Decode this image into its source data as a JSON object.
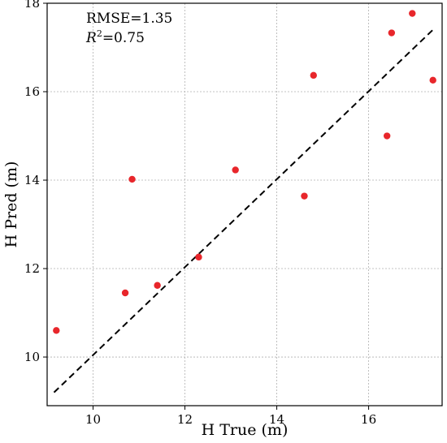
{
  "chart_data": {
    "type": "scatter",
    "xlabel": "H True (m)",
    "ylabel": "H Pred (m)",
    "xlim": [
      9.0,
      17.6
    ],
    "ylim": [
      8.9,
      18.0
    ],
    "xticks": [
      10,
      12,
      14,
      16
    ],
    "yticks": [
      10,
      12,
      14,
      16,
      18
    ],
    "grid": true,
    "point_color": "#e8262b",
    "annotations": {
      "rmse": "RMSE=1.35",
      "r2_symbol": "R",
      "r2_exponent": "2",
      "r2_value": "=0.75"
    },
    "points": [
      {
        "x": 9.2,
        "y": 10.6
      },
      {
        "x": 10.7,
        "y": 11.45
      },
      {
        "x": 10.85,
        "y": 14.02
      },
      {
        "x": 11.4,
        "y": 11.62
      },
      {
        "x": 12.3,
        "y": 12.26
      },
      {
        "x": 13.1,
        "y": 14.23
      },
      {
        "x": 14.6,
        "y": 13.64
      },
      {
        "x": 14.8,
        "y": 16.37
      },
      {
        "x": 16.4,
        "y": 15.0
      },
      {
        "x": 16.5,
        "y": 17.33
      },
      {
        "x": 16.95,
        "y": 17.77
      },
      {
        "x": 17.4,
        "y": 16.26
      }
    ],
    "fit_line": {
      "style": "dashed",
      "color": "#000000",
      "from": {
        "x": 9.15,
        "y": 9.2
      },
      "to": {
        "x": 17.4,
        "y": 17.4
      }
    }
  }
}
